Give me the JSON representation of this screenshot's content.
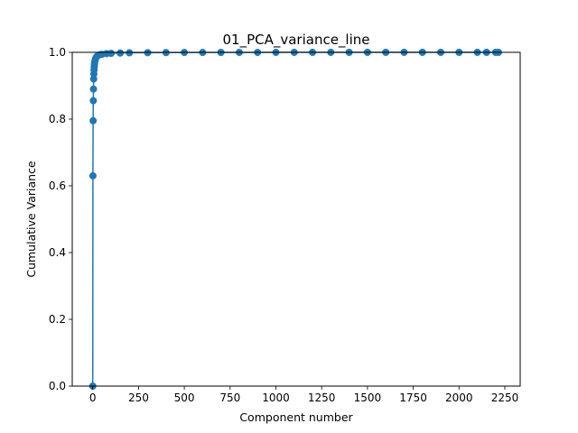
{
  "chart_data": {
    "type": "line",
    "title": "01_PCA_variance_line",
    "xlabel": "Component number",
    "ylabel": "Cumulative Variance",
    "xlim": [
      -112,
      2334
    ],
    "ylim": [
      0,
      1.0
    ],
    "xticks": [
      0,
      250,
      500,
      750,
      1000,
      1250,
      1500,
      1750,
      2000,
      2250
    ],
    "xtick_labels": [
      "0",
      "250",
      "500",
      "750",
      "1000",
      "1250",
      "1500",
      "1750",
      "2000",
      "2250"
    ],
    "yticks": [
      0,
      0.2,
      0.4,
      0.6,
      0.8,
      1.0
    ],
    "ytick_labels": [
      "0.0",
      "0.2",
      "0.4",
      "0.6",
      "0.8",
      "1.0"
    ],
    "grid": false,
    "legend": "none",
    "marker": "circle",
    "color": "#1f77b4",
    "series": [
      {
        "x": [
          0,
          1,
          2,
          3,
          4,
          5,
          6,
          7,
          8,
          9,
          10,
          12,
          15,
          20,
          25,
          30,
          40,
          50,
          75,
          100,
          150,
          200,
          300,
          400,
          500,
          600,
          700,
          800,
          900,
          1000,
          1100,
          1200,
          1300,
          1400,
          1500,
          1600,
          1700,
          1800,
          1900,
          2000,
          2100,
          2150,
          2200,
          2215
        ],
        "y": [
          0.0,
          0.63,
          0.795,
          0.855,
          0.89,
          0.92,
          0.935,
          0.947,
          0.956,
          0.963,
          0.968,
          0.975,
          0.981,
          0.986,
          0.989,
          0.991,
          0.993,
          0.994,
          0.996,
          0.997,
          0.998,
          0.9985,
          0.999,
          0.9993,
          0.9995,
          0.9996,
          0.9997,
          0.9998,
          0.9998,
          0.9999,
          0.9999,
          0.9999,
          0.9999,
          1.0,
          1.0,
          1.0,
          1.0,
          1.0,
          1.0,
          1.0,
          1.0,
          1.0,
          1.0,
          1.0
        ]
      }
    ]
  }
}
